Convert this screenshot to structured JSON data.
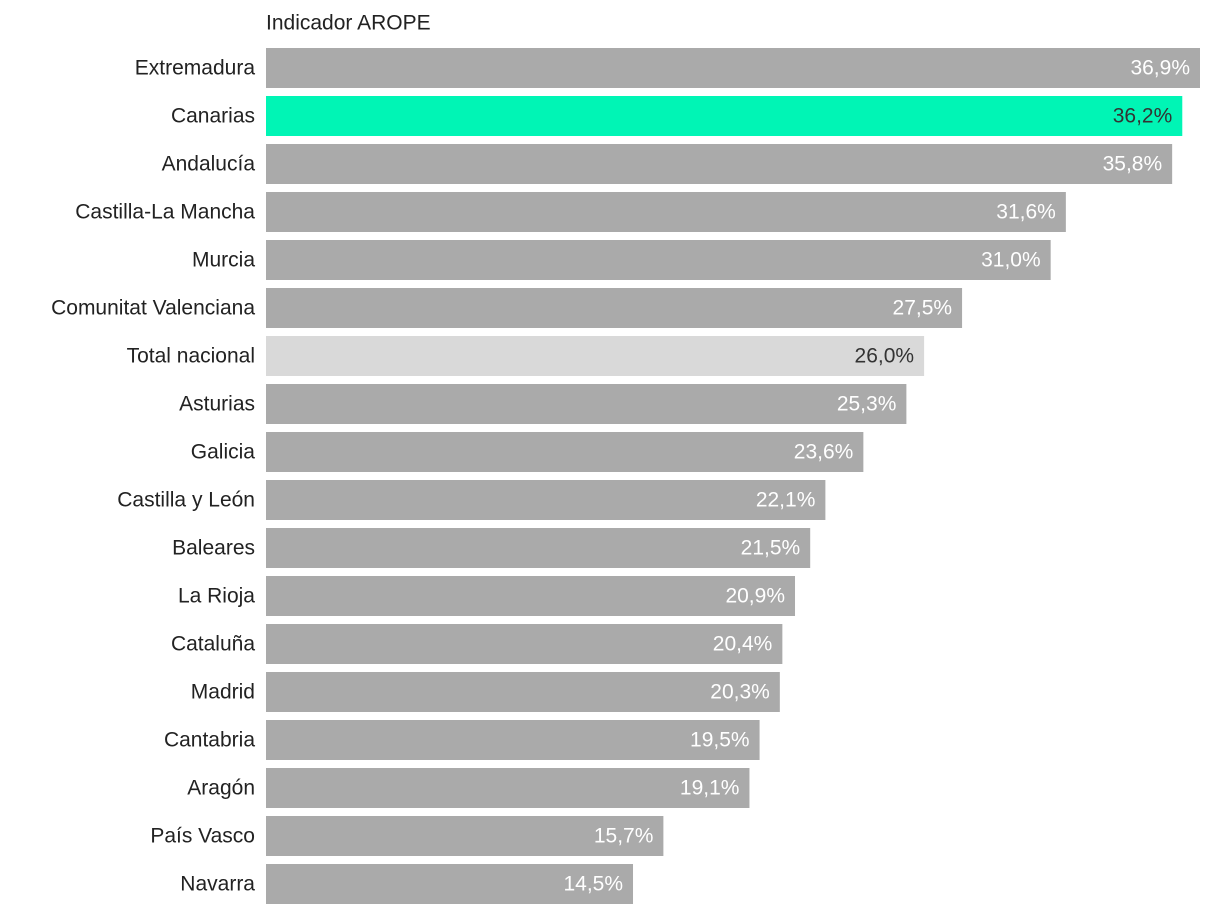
{
  "chart_data": {
    "type": "hbar",
    "title": "Indicador AROPE",
    "categories": [
      "Extremadura",
      "Canarias",
      "Andalucía",
      "Castilla-La Mancha",
      "Murcia",
      "Comunitat Valenciana",
      "Total nacional",
      "Asturias",
      "Galicia",
      "Castilla y León",
      "Baleares",
      "La Rioja",
      "Cataluña",
      "Madrid",
      "Cantabria",
      "Aragón",
      "País Vasco",
      "Navarra"
    ],
    "values": [
      36.9,
      36.2,
      35.8,
      31.6,
      31.0,
      27.5,
      26.0,
      25.3,
      23.6,
      22.1,
      21.5,
      20.9,
      20.4,
      20.3,
      19.5,
      19.1,
      15.7,
      14.5
    ],
    "value_labels": [
      "36,9%",
      "36,2%",
      "35,8%",
      "31,6%",
      "31,0%",
      "27,5%",
      "26,0%",
      "25,3%",
      "23,6%",
      "22,1%",
      "21,5%",
      "20,9%",
      "20,4%",
      "20,3%",
      "19,5%",
      "19,1%",
      "15,7%",
      "14,5%"
    ],
    "colors": [
      "#aaaaaa",
      "#00f5b5",
      "#aaaaaa",
      "#aaaaaa",
      "#aaaaaa",
      "#aaaaaa",
      "#d9d9d9",
      "#aaaaaa",
      "#aaaaaa",
      "#aaaaaa",
      "#aaaaaa",
      "#aaaaaa",
      "#aaaaaa",
      "#aaaaaa",
      "#aaaaaa",
      "#aaaaaa",
      "#aaaaaa",
      "#aaaaaa"
    ],
    "label_colors": [
      "#ffffff",
      "#333333",
      "#ffffff",
      "#ffffff",
      "#ffffff",
      "#ffffff",
      "#333333",
      "#ffffff",
      "#ffffff",
      "#ffffff",
      "#ffffff",
      "#ffffff",
      "#ffffff",
      "#ffffff",
      "#ffffff",
      "#ffffff",
      "#ffffff",
      "#ffffff"
    ]
  }
}
